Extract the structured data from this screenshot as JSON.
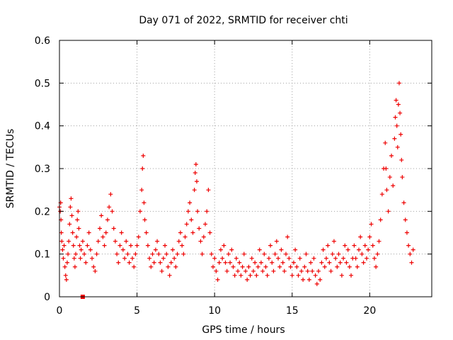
{
  "chart_data": {
    "type": "scatter",
    "title": "Day 071 of 2022, SRMTID for receiver chti",
    "xlabel": "GPS time / hours",
    "ylabel": "SRMTID / TECUs",
    "xlim": [
      0,
      24
    ],
    "ylim": [
      0,
      0.6
    ],
    "xticks": [
      0,
      5,
      10,
      15,
      20
    ],
    "xtick_labels": [
      "0",
      "5",
      "10",
      "15",
      "20"
    ],
    "yticks": [
      0,
      0.1,
      0.2,
      0.3,
      0.4,
      0.5,
      0.6
    ],
    "ytick_labels": [
      "0",
      "0.1",
      "0.2",
      "0.3",
      "0.4",
      "0.5",
      "0.6"
    ],
    "grid": true,
    "marker": "plus",
    "marker_color": "#ee0000",
    "frame_color": "#000000",
    "grid_color": "#a0a0a0",
    "square_marker": [
      1.5,
      0.0
    ],
    "series": [
      {
        "name": "SRMTID",
        "points": [
          [
            0.0,
            0.21
          ],
          [
            0.05,
            0.2
          ],
          [
            0.08,
            0.22
          ],
          [
            0.1,
            0.18
          ],
          [
            0.12,
            0.15
          ],
          [
            0.15,
            0.13
          ],
          [
            0.2,
            0.11
          ],
          [
            0.25,
            0.09
          ],
          [
            0.3,
            0.12
          ],
          [
            0.35,
            0.07
          ],
          [
            0.4,
            0.05
          ],
          [
            0.45,
            0.04
          ],
          [
            0.5,
            0.08
          ],
          [
            0.55,
            0.1
          ],
          [
            0.6,
            0.13
          ],
          [
            0.65,
            0.17
          ],
          [
            0.7,
            0.21
          ],
          [
            0.75,
            0.23
          ],
          [
            0.8,
            0.19
          ],
          [
            0.85,
            0.15
          ],
          [
            0.9,
            0.12
          ],
          [
            0.95,
            0.09
          ],
          [
            1.0,
            0.07
          ],
          [
            1.05,
            0.1
          ],
          [
            1.1,
            0.14
          ],
          [
            1.15,
            0.18
          ],
          [
            1.2,
            0.2
          ],
          [
            1.25,
            0.16
          ],
          [
            1.3,
            0.12
          ],
          [
            1.35,
            0.09
          ],
          [
            1.4,
            0.11
          ],
          [
            1.5,
            0.13
          ],
          [
            1.6,
            0.1
          ],
          [
            1.7,
            0.08
          ],
          [
            1.8,
            0.12
          ],
          [
            1.9,
            0.15
          ],
          [
            2.0,
            0.11
          ],
          [
            2.1,
            0.09
          ],
          [
            2.2,
            0.07
          ],
          [
            2.3,
            0.06
          ],
          [
            2.4,
            0.1
          ],
          [
            2.5,
            0.13
          ],
          [
            2.6,
            0.16
          ],
          [
            2.7,
            0.19
          ],
          [
            2.8,
            0.14
          ],
          [
            2.9,
            0.12
          ],
          [
            3.0,
            0.15
          ],
          [
            3.1,
            0.18
          ],
          [
            3.2,
            0.21
          ],
          [
            3.3,
            0.24
          ],
          [
            3.4,
            0.2
          ],
          [
            3.5,
            0.16
          ],
          [
            3.6,
            0.13
          ],
          [
            3.7,
            0.1
          ],
          [
            3.8,
            0.08
          ],
          [
            3.9,
            0.12
          ],
          [
            4.0,
            0.15
          ],
          [
            4.1,
            0.11
          ],
          [
            4.2,
            0.09
          ],
          [
            4.3,
            0.13
          ],
          [
            4.4,
            0.1
          ],
          [
            4.5,
            0.08
          ],
          [
            4.6,
            0.12
          ],
          [
            4.7,
            0.09
          ],
          [
            4.8,
            0.07
          ],
          [
            4.9,
            0.1
          ],
          [
            5.0,
            0.12
          ],
          [
            5.1,
            0.14
          ],
          [
            5.2,
            0.2
          ],
          [
            5.3,
            0.25
          ],
          [
            5.35,
            0.3
          ],
          [
            5.4,
            0.33
          ],
          [
            5.45,
            0.22
          ],
          [
            5.5,
            0.18
          ],
          [
            5.6,
            0.15
          ],
          [
            5.7,
            0.12
          ],
          [
            5.8,
            0.09
          ],
          [
            5.9,
            0.07
          ],
          [
            6.0,
            0.1
          ],
          [
            6.1,
            0.08
          ],
          [
            6.2,
            0.11
          ],
          [
            6.3,
            0.13
          ],
          [
            6.4,
            0.1
          ],
          [
            6.5,
            0.08
          ],
          [
            6.6,
            0.06
          ],
          [
            6.7,
            0.09
          ],
          [
            6.8,
            0.12
          ],
          [
            6.9,
            0.1
          ],
          [
            7.0,
            0.07
          ],
          [
            7.1,
            0.05
          ],
          [
            7.2,
            0.08
          ],
          [
            7.3,
            0.11
          ],
          [
            7.4,
            0.09
          ],
          [
            7.5,
            0.07
          ],
          [
            7.6,
            0.1
          ],
          [
            7.7,
            0.13
          ],
          [
            7.8,
            0.15
          ],
          [
            7.9,
            0.12
          ],
          [
            8.0,
            0.1
          ],
          [
            8.1,
            0.14
          ],
          [
            8.2,
            0.17
          ],
          [
            8.3,
            0.2
          ],
          [
            8.4,
            0.22
          ],
          [
            8.5,
            0.18
          ],
          [
            8.6,
            0.15
          ],
          [
            8.7,
            0.25
          ],
          [
            8.75,
            0.29
          ],
          [
            8.8,
            0.31
          ],
          [
            8.85,
            0.27
          ],
          [
            8.9,
            0.2
          ],
          [
            9.0,
            0.16
          ],
          [
            9.1,
            0.13
          ],
          [
            9.2,
            0.1
          ],
          [
            9.3,
            0.14
          ],
          [
            9.4,
            0.17
          ],
          [
            9.5,
            0.2
          ],
          [
            9.6,
            0.25
          ],
          [
            9.7,
            0.15
          ],
          [
            9.8,
            0.1
          ],
          [
            9.9,
            0.07
          ],
          [
            10.0,
            0.09
          ],
          [
            10.1,
            0.06
          ],
          [
            10.2,
            0.04
          ],
          [
            10.3,
            0.08
          ],
          [
            10.4,
            0.11
          ],
          [
            10.5,
            0.09
          ],
          [
            10.6,
            0.12
          ],
          [
            10.7,
            0.08
          ],
          [
            10.8,
            0.06
          ],
          [
            10.9,
            0.1
          ],
          [
            11.0,
            0.08
          ],
          [
            11.1,
            0.11
          ],
          [
            11.2,
            0.07
          ],
          [
            11.3,
            0.05
          ],
          [
            11.4,
            0.09
          ],
          [
            11.5,
            0.06
          ],
          [
            11.6,
            0.08
          ],
          [
            11.7,
            0.05
          ],
          [
            11.8,
            0.07
          ],
          [
            11.9,
            0.1
          ],
          [
            12.0,
            0.06
          ],
          [
            12.1,
            0.04
          ],
          [
            12.2,
            0.07
          ],
          [
            12.3,
            0.05
          ],
          [
            12.4,
            0.09
          ],
          [
            12.5,
            0.06
          ],
          [
            12.6,
            0.08
          ],
          [
            12.7,
            0.05
          ],
          [
            12.8,
            0.07
          ],
          [
            12.9,
            0.11
          ],
          [
            13.0,
            0.08
          ],
          [
            13.1,
            0.06
          ],
          [
            13.2,
            0.1
          ],
          [
            13.3,
            0.07
          ],
          [
            13.4,
            0.05
          ],
          [
            13.5,
            0.09
          ],
          [
            13.6,
            0.12
          ],
          [
            13.7,
            0.08
          ],
          [
            13.8,
            0.06
          ],
          [
            13.9,
            0.1
          ],
          [
            14.0,
            0.13
          ],
          [
            14.1,
            0.09
          ],
          [
            14.2,
            0.07
          ],
          [
            14.3,
            0.11
          ],
          [
            14.4,
            0.08
          ],
          [
            14.5,
            0.06
          ],
          [
            14.6,
            0.1
          ],
          [
            14.7,
            0.14
          ],
          [
            14.8,
            0.09
          ],
          [
            14.9,
            0.07
          ],
          [
            15.0,
            0.05
          ],
          [
            15.1,
            0.08
          ],
          [
            15.2,
            0.11
          ],
          [
            15.3,
            0.07
          ],
          [
            15.4,
            0.05
          ],
          [
            15.5,
            0.09
          ],
          [
            15.6,
            0.06
          ],
          [
            15.7,
            0.04
          ],
          [
            15.8,
            0.07
          ],
          [
            15.9,
            0.1
          ],
          [
            16.0,
            0.06
          ],
          [
            16.1,
            0.04
          ],
          [
            16.2,
            0.08
          ],
          [
            16.3,
            0.06
          ],
          [
            16.4,
            0.09
          ],
          [
            16.5,
            0.05
          ],
          [
            16.6,
            0.03
          ],
          [
            16.7,
            0.06
          ],
          [
            16.8,
            0.04
          ],
          [
            16.9,
            0.08
          ],
          [
            17.0,
            0.11
          ],
          [
            17.1,
            0.07
          ],
          [
            17.2,
            0.09
          ],
          [
            17.3,
            0.12
          ],
          [
            17.4,
            0.08
          ],
          [
            17.5,
            0.06
          ],
          [
            17.6,
            0.1
          ],
          [
            17.7,
            0.13
          ],
          [
            17.8,
            0.09
          ],
          [
            17.9,
            0.07
          ],
          [
            18.0,
            0.1
          ],
          [
            18.1,
            0.08
          ],
          [
            18.2,
            0.05
          ],
          [
            18.3,
            0.09
          ],
          [
            18.4,
            0.12
          ],
          [
            18.5,
            0.08
          ],
          [
            18.6,
            0.11
          ],
          [
            18.7,
            0.07
          ],
          [
            18.8,
            0.05
          ],
          [
            18.9,
            0.09
          ],
          [
            19.0,
            0.12
          ],
          [
            19.1,
            0.09
          ],
          [
            19.2,
            0.07
          ],
          [
            19.3,
            0.11
          ],
          [
            19.4,
            0.14
          ],
          [
            19.5,
            0.1
          ],
          [
            19.6,
            0.08
          ],
          [
            19.7,
            0.12
          ],
          [
            19.8,
            0.09
          ],
          [
            19.9,
            0.11
          ],
          [
            20.0,
            0.14
          ],
          [
            20.1,
            0.17
          ],
          [
            20.2,
            0.12
          ],
          [
            20.3,
            0.09
          ],
          [
            20.4,
            0.07
          ],
          [
            20.5,
            0.1
          ],
          [
            20.6,
            0.13
          ],
          [
            20.7,
            0.18
          ],
          [
            20.8,
            0.24
          ],
          [
            20.9,
            0.3
          ],
          [
            21.0,
            0.36
          ],
          [
            21.05,
            0.3
          ],
          [
            21.1,
            0.25
          ],
          [
            21.2,
            0.2
          ],
          [
            21.3,
            0.28
          ],
          [
            21.4,
            0.33
          ],
          [
            21.5,
            0.26
          ],
          [
            21.6,
            0.37
          ],
          [
            21.65,
            0.42
          ],
          [
            21.7,
            0.46
          ],
          [
            21.75,
            0.4
          ],
          [
            21.8,
            0.35
          ],
          [
            21.85,
            0.45
          ],
          [
            21.9,
            0.5
          ],
          [
            21.95,
            0.43
          ],
          [
            22.0,
            0.38
          ],
          [
            22.05,
            0.32
          ],
          [
            22.1,
            0.28
          ],
          [
            22.2,
            0.22
          ],
          [
            22.3,
            0.18
          ],
          [
            22.4,
            0.15
          ],
          [
            22.5,
            0.12
          ],
          [
            22.6,
            0.1
          ],
          [
            22.7,
            0.08
          ],
          [
            22.8,
            0.11
          ]
        ]
      }
    ]
  }
}
